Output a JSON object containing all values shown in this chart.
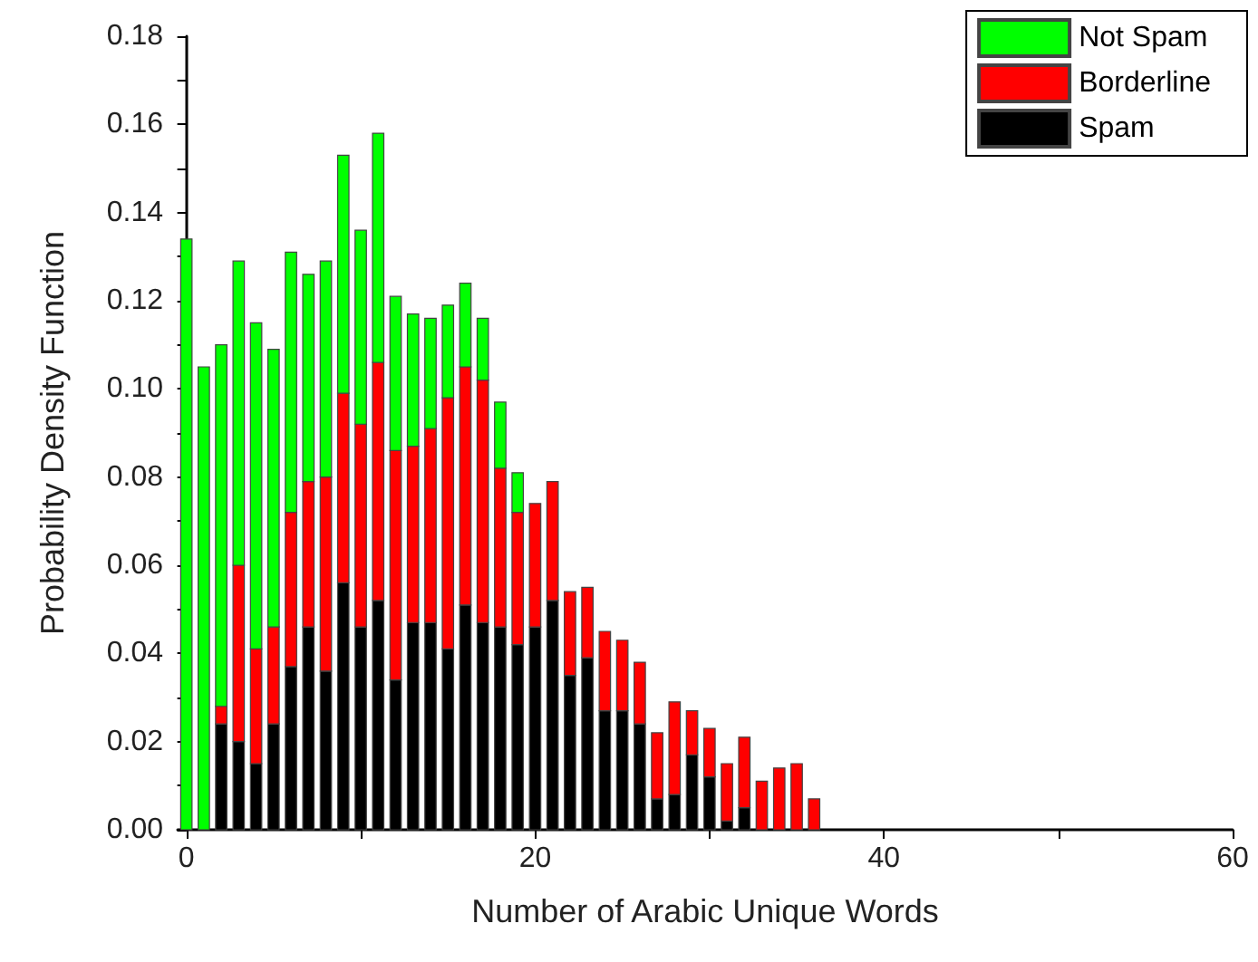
{
  "chart_data": {
    "type": "bar",
    "stacked": true,
    "xlabel": "Number of Arabic Unique Words",
    "ylabel": "Probability Density Function",
    "x": [
      0,
      1,
      2,
      3,
      4,
      5,
      6,
      7,
      8,
      9,
      10,
      11,
      12,
      13,
      14,
      15,
      16,
      17,
      18,
      19,
      20,
      21,
      22,
      23,
      24,
      25,
      26,
      27,
      28,
      29,
      30,
      31,
      32,
      33,
      34,
      35,
      36
    ],
    "series": [
      {
        "name": "Spam",
        "color": "#000000",
        "values": [
          0,
          0,
          0.024,
          0.02,
          0.015,
          0.024,
          0.037,
          0.046,
          0.036,
          0.056,
          0.046,
          0.052,
          0.034,
          0.047,
          0.047,
          0.041,
          0.051,
          0.047,
          0.046,
          0.042,
          0.046,
          0.052,
          0.035,
          0.039,
          0.027,
          0.027,
          0.024,
          0.007,
          0.008,
          0.017,
          0.012,
          0.002,
          0.005,
          0,
          0,
          0,
          0
        ]
      },
      {
        "name": "Borderline",
        "color": "#ff0000",
        "values": [
          0,
          0,
          0.004,
          0.04,
          0.026,
          0.022,
          0.035,
          0.033,
          0.044,
          0.043,
          0.046,
          0.054,
          0.052,
          0.04,
          0.044,
          0.057,
          0.054,
          0.055,
          0.036,
          0.03,
          0.028,
          0.027,
          0.019,
          0.016,
          0.018,
          0.016,
          0.014,
          0.015,
          0.021,
          0.01,
          0.011,
          0.013,
          0.016,
          0.011,
          0.014,
          0.015,
          0.007
        ]
      },
      {
        "name": "Not Spam",
        "color": "#00ff00",
        "values": [
          0.134,
          0.105,
          0.082,
          0.069,
          0.074,
          0.063,
          0.059,
          0.047,
          0.049,
          0.054,
          0.044,
          0.052,
          0.035,
          0.03,
          0.025,
          0.021,
          0.019,
          0.014,
          0.015,
          0.009,
          0,
          0,
          0,
          0,
          0,
          0,
          0,
          0,
          0,
          0,
          0,
          0,
          0,
          0,
          0,
          0,
          0
        ]
      }
    ],
    "xlim": [
      -0.5,
      60
    ],
    "xticks": [
      0,
      {
        "value": 10,
        "label": null
      },
      20,
      {
        "value": 30,
        "label": null
      },
      40,
      {
        "value": 50,
        "label": null
      },
      60
    ],
    "ylim": [
      0,
      0.18
    ],
    "yticks": [
      {
        "value": 0,
        "label": "0.00"
      },
      {
        "value": 0.01,
        "label": null
      },
      {
        "value": 0.02,
        "label": "0.02"
      },
      {
        "value": 0.03,
        "label": null
      },
      {
        "value": 0.04,
        "label": "0.04"
      },
      {
        "value": 0.05,
        "label": null
      },
      {
        "value": 0.06,
        "label": "0.06"
      },
      {
        "value": 0.07,
        "label": null
      },
      {
        "value": 0.08,
        "label": "0.08"
      },
      {
        "value": 0.09,
        "label": null
      },
      {
        "value": 0.1,
        "label": "0.10"
      },
      {
        "value": 0.11,
        "label": null
      },
      {
        "value": 0.12,
        "label": "0.12"
      },
      {
        "value": 0.13,
        "label": null
      },
      {
        "value": 0.14,
        "label": "0.14"
      },
      {
        "value": 0.15,
        "label": null
      },
      {
        "value": 0.16,
        "label": "0.16"
      },
      {
        "value": 0.17,
        "label": null
      },
      {
        "value": 0.18,
        "label": "0.18"
      }
    ],
    "grid": false,
    "legend": "top right"
  }
}
